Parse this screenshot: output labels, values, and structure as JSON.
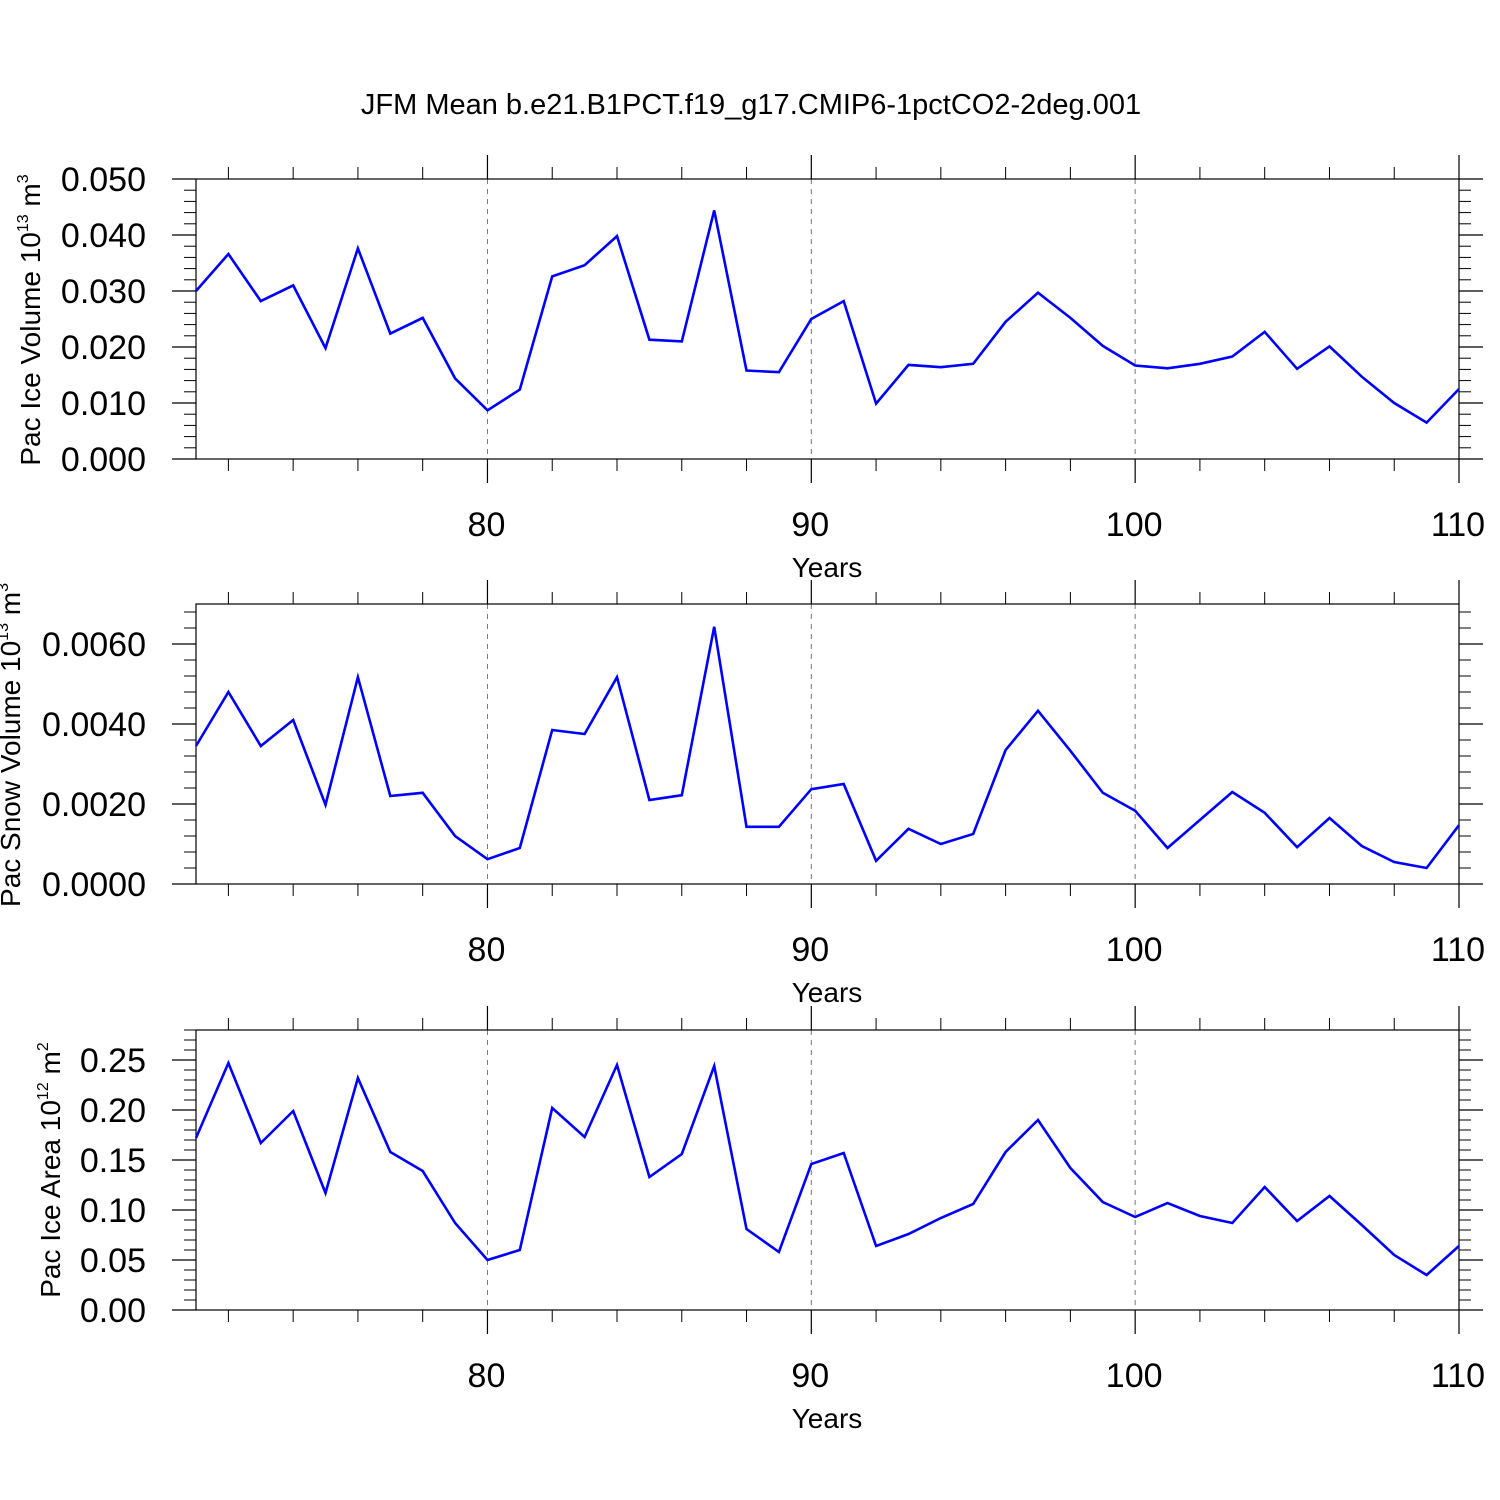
{
  "title": "JFM Mean b.e21.B1PCT.f19_g17.CMIP6-1pctCO2-2deg.001",
  "chart_data": [
    {
      "type": "line",
      "xlabel": "Years",
      "ylabel": {
        "text": "Pac Ice Volume 10",
        "exp": "13",
        "unit": " m",
        "unit_exp": "3"
      },
      "xlim": [
        71,
        110
      ],
      "ylim": [
        0,
        0.05
      ],
      "xticks": [
        80,
        90,
        100,
        110
      ],
      "yticks": [
        0,
        0.01,
        0.02,
        0.03,
        0.04,
        0.05
      ],
      "yticklabels": [
        "0.000",
        "0.010",
        "0.020",
        "0.030",
        "0.040",
        "0.050"
      ],
      "grid": "dashed vertical at major x ticks",
      "series_color": "#0000ff",
      "x": [
        71,
        72,
        73,
        74,
        75,
        76,
        77,
        78,
        79,
        80,
        81,
        82,
        83,
        84,
        85,
        86,
        87,
        88,
        89,
        90,
        91,
        92,
        93,
        94,
        95,
        96,
        97,
        98,
        99,
        100,
        101,
        102,
        103,
        104,
        105,
        106,
        107,
        108,
        109,
        110
      ],
      "values": [
        0.03,
        0.0366,
        0.0282,
        0.031,
        0.0198,
        0.0376,
        0.0224,
        0.0252,
        0.0144,
        0.0087,
        0.0124,
        0.0326,
        0.0346,
        0.0398,
        0.0213,
        0.021,
        0.0444,
        0.0158,
        0.0155,
        0.025,
        0.0282,
        0.0099,
        0.0168,
        0.0164,
        0.017,
        0.0245,
        0.0297,
        0.0252,
        0.0202,
        0.0167,
        0.0162,
        0.017,
        0.0183,
        0.0227,
        0.0161,
        0.0201,
        0.0147,
        0.01,
        0.0065,
        0.0125
      ]
    },
    {
      "type": "line",
      "xlabel": "Years",
      "ylabel": {
        "text": "Pac Snow Volume 10",
        "exp": "13",
        "unit": " m",
        "unit_exp": "3"
      },
      "xlim": [
        71,
        110
      ],
      "ylim": [
        0,
        0.007
      ],
      "xticks": [
        80,
        90,
        100,
        110
      ],
      "yticks": [
        0,
        0.002,
        0.004,
        0.006
      ],
      "yticklabels": [
        "0.0000",
        "0.0020",
        "0.0040",
        "0.0060"
      ],
      "grid": "dashed vertical at major x ticks",
      "series_color": "#0000ff",
      "x": [
        71,
        72,
        73,
        74,
        75,
        76,
        77,
        78,
        79,
        80,
        81,
        82,
        83,
        84,
        85,
        86,
        87,
        88,
        89,
        90,
        91,
        92,
        93,
        94,
        95,
        96,
        97,
        98,
        99,
        100,
        101,
        102,
        103,
        104,
        105,
        106,
        107,
        108,
        109,
        110
      ],
      "values": [
        0.00345,
        0.0048,
        0.00345,
        0.0041,
        0.00198,
        0.00517,
        0.0022,
        0.00228,
        0.0012,
        0.00062,
        0.0009,
        0.00385,
        0.00375,
        0.00517,
        0.0021,
        0.00222,
        0.00643,
        0.00143,
        0.00143,
        0.00237,
        0.0025,
        0.00058,
        0.00138,
        0.001,
        0.00125,
        0.00335,
        0.00433,
        0.00333,
        0.00228,
        0.00183,
        0.0009,
        0.0016,
        0.0023,
        0.00178,
        0.00092,
        0.00165,
        0.00095,
        0.00055,
        0.0004,
        0.00147
      ]
    },
    {
      "type": "line",
      "xlabel": "Years",
      "ylabel": {
        "text": "Pac Ice Area 10",
        "exp": "12",
        "unit": " m",
        "unit_exp": "2"
      },
      "xlim": [
        71,
        110
      ],
      "ylim": [
        0,
        0.28
      ],
      "xticks": [
        80,
        90,
        100,
        110
      ],
      "yticks": [
        0,
        0.05,
        0.1,
        0.15,
        0.2,
        0.25
      ],
      "yticklabels": [
        "0.00",
        "0.05",
        "0.10",
        "0.15",
        "0.20",
        "0.25"
      ],
      "grid": "dashed vertical at major x ticks",
      "series_color": "#0000ff",
      "x": [
        71,
        72,
        73,
        74,
        75,
        76,
        77,
        78,
        79,
        80,
        81,
        82,
        83,
        84,
        85,
        86,
        87,
        88,
        89,
        90,
        91,
        92,
        93,
        94,
        95,
        96,
        97,
        98,
        99,
        100,
        101,
        102,
        103,
        104,
        105,
        106,
        107,
        108,
        109,
        110
      ],
      "values": [
        0.172,
        0.247,
        0.167,
        0.199,
        0.117,
        0.232,
        0.158,
        0.139,
        0.087,
        0.05,
        0.06,
        0.202,
        0.173,
        0.245,
        0.133,
        0.156,
        0.244,
        0.081,
        0.058,
        0.146,
        0.157,
        0.064,
        0.076,
        0.092,
        0.106,
        0.158,
        0.19,
        0.142,
        0.108,
        0.093,
        0.107,
        0.094,
        0.087,
        0.123,
        0.089,
        0.114,
        0.085,
        0.055,
        0.035,
        0.064
      ]
    }
  ]
}
